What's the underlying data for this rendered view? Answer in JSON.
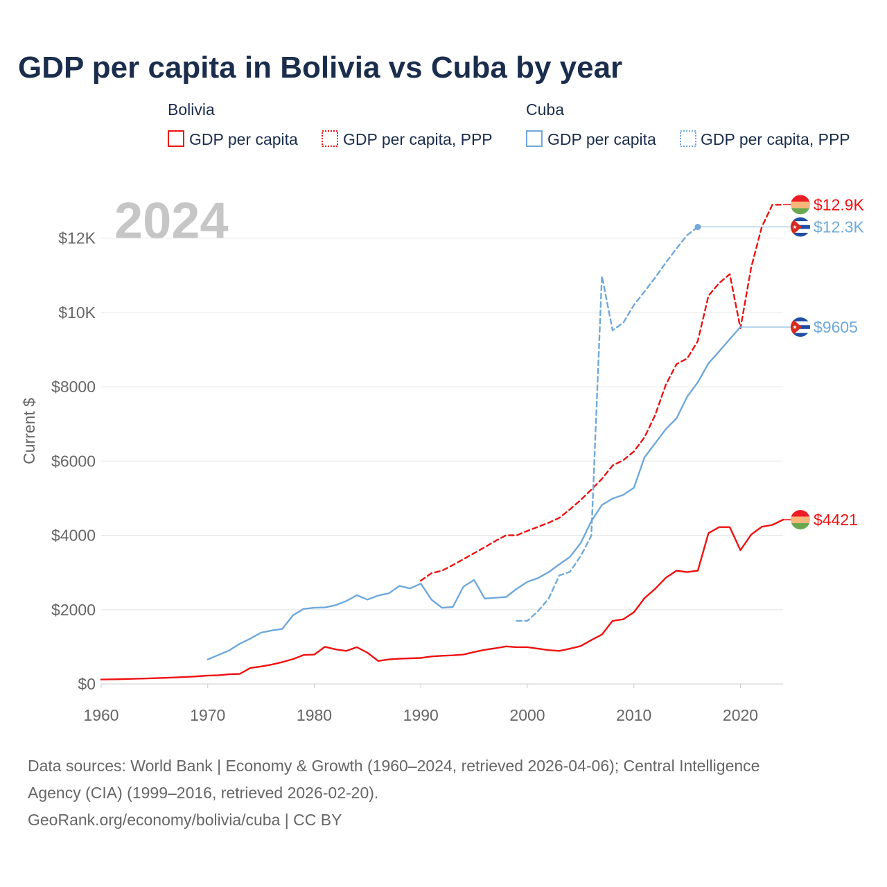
{
  "chart_data": {
    "type": "line",
    "title": "GDP per capita in Bolivia vs Cuba by year",
    "year_label": "2024",
    "ylabel": "Current $",
    "xlim": [
      1960,
      2024
    ],
    "ylim": [
      0,
      13000
    ],
    "x_ticks": [
      {
        "value": 1960,
        "label": "1960"
      },
      {
        "value": 1970,
        "label": "1970"
      },
      {
        "value": 1980,
        "label": "1980"
      },
      {
        "value": 1990,
        "label": "1990"
      },
      {
        "value": 2000,
        "label": "2000"
      },
      {
        "value": 2010,
        "label": "2010"
      },
      {
        "value": 2020,
        "label": "2020"
      }
    ],
    "y_ticks": [
      {
        "value": 0,
        "label": "$0"
      },
      {
        "value": 2000,
        "label": "$2000"
      },
      {
        "value": 4000,
        "label": "$4000"
      },
      {
        "value": 6000,
        "label": "$6000"
      },
      {
        "value": 8000,
        "label": "$8000"
      },
      {
        "value": 10000,
        "label": "$10K"
      },
      {
        "value": 12000,
        "label": "$12K"
      }
    ],
    "legend": [
      {
        "group": "Bolivia",
        "entries": [
          {
            "label": "GDP per capita",
            "series": "bolivia_gdp"
          },
          {
            "label": "GDP per capita, PPP",
            "series": "bolivia_ppp"
          }
        ]
      },
      {
        "group": "Cuba",
        "entries": [
          {
            "label": "GDP per capita",
            "series": "cuba_gdp"
          },
          {
            "label": "GDP per capita, PPP",
            "series": "cuba_ppp"
          }
        ]
      }
    ],
    "series": [
      {
        "id": "bolivia_gdp",
        "name": "Bolivia GDP per capita",
        "country": "Bolivia",
        "color": "#ee1111",
        "style": "solid",
        "end_label": "$4421",
        "end_value": 4421,
        "x": [
          1960,
          1961,
          1962,
          1963,
          1964,
          1965,
          1966,
          1967,
          1968,
          1969,
          1970,
          1971,
          1972,
          1973,
          1974,
          1975,
          1976,
          1977,
          1978,
          1979,
          1980,
          1981,
          1982,
          1983,
          1984,
          1985,
          1986,
          1987,
          1988,
          1989,
          1990,
          1991,
          1992,
          1993,
          1994,
          1995,
          1996,
          1997,
          1998,
          1999,
          2000,
          2001,
          2002,
          2003,
          2004,
          2005,
          2006,
          2007,
          2008,
          2009,
          2010,
          2011,
          2012,
          2013,
          2014,
          2015,
          2016,
          2017,
          2018,
          2019,
          2020,
          2021,
          2022,
          2023,
          2024
        ],
        "y": [
          120,
          125,
          130,
          138,
          146,
          155,
          165,
          175,
          190,
          205,
          225,
          235,
          262,
          270,
          430,
          470,
          520,
          590,
          670,
          780,
          790,
          1000,
          930,
          890,
          990,
          840,
          620,
          660,
          680,
          690,
          700,
          740,
          760,
          770,
          790,
          860,
          920,
          960,
          1010,
          990,
          990,
          950,
          910,
          890,
          950,
          1020,
          1180,
          1330,
          1700,
          1740,
          1930,
          2310,
          2560,
          2860,
          3050,
          3010,
          3050,
          4060,
          4220,
          4220,
          3600,
          4020,
          4230,
          4280,
          4421
        ]
      },
      {
        "id": "bolivia_ppp",
        "name": "Bolivia GDP per capita, PPP",
        "country": "Bolivia",
        "color": "#ee1111",
        "style": "dashed",
        "end_label": "$12.9K",
        "end_value": 12900,
        "x": [
          1990,
          1991,
          1992,
          1993,
          1994,
          1995,
          1996,
          1997,
          1998,
          1999,
          2000,
          2001,
          2002,
          2003,
          2004,
          2005,
          2006,
          2007,
          2008,
          2009,
          2010,
          2011,
          2012,
          2013,
          2014,
          2015,
          2016,
          2017,
          2018,
          2019,
          2020,
          2021,
          2022,
          2023,
          2024
        ],
        "y": [
          2780,
          2980,
          3050,
          3200,
          3360,
          3520,
          3680,
          3850,
          4000,
          4000,
          4120,
          4230,
          4340,
          4470,
          4700,
          4950,
          5230,
          5520,
          5880,
          6020,
          6260,
          6640,
          7240,
          8060,
          8610,
          8760,
          9230,
          10450,
          10790,
          11030,
          9570,
          11200,
          12300,
          12900,
          12900
        ]
      },
      {
        "id": "cuba_gdp",
        "name": "Cuba GDP per capita",
        "country": "Cuba",
        "color": "#6fa8dc",
        "style": "solid",
        "end_label": "$9605",
        "end_value": 9605,
        "x": [
          1970,
          1971,
          1972,
          1973,
          1974,
          1975,
          1976,
          1977,
          1978,
          1979,
          1980,
          1981,
          1982,
          1983,
          1984,
          1985,
          1986,
          1987,
          1988,
          1989,
          1990,
          1991,
          1992,
          1993,
          1994,
          1995,
          1996,
          1997,
          1998,
          1999,
          2000,
          2001,
          2002,
          2003,
          2004,
          2005,
          2006,
          2007,
          2008,
          2009,
          2010,
          2011,
          2012,
          2013,
          2014,
          2015,
          2016,
          2017,
          2018,
          2019,
          2020
        ],
        "y": [
          660,
          780,
          900,
          1080,
          1220,
          1380,
          1440,
          1480,
          1850,
          2020,
          2050,
          2060,
          2120,
          2230,
          2390,
          2270,
          2380,
          2440,
          2640,
          2570,
          2700,
          2270,
          2050,
          2070,
          2620,
          2800,
          2300,
          2320,
          2340,
          2560,
          2750,
          2850,
          3010,
          3220,
          3420,
          3790,
          4380,
          4820,
          4990,
          5090,
          5280,
          6100,
          6480,
          6860,
          7150,
          7730,
          8120,
          8630,
          8950,
          9280,
          9605
        ]
      },
      {
        "id": "cuba_ppp",
        "name": "Cuba GDP per capita, PPP",
        "country": "Cuba",
        "color": "#6fa8dc",
        "style": "dashed",
        "end_label": "$12.3K",
        "end_value": 12300,
        "x": [
          1999,
          2000,
          2001,
          2002,
          2003,
          2004,
          2005,
          2006,
          2007,
          2008,
          2009,
          2010,
          2011,
          2012,
          2013,
          2014,
          2015,
          2016
        ],
        "y": [
          1700,
          1700,
          1960,
          2300,
          2920,
          3020,
          3440,
          3990,
          10980,
          9520,
          9720,
          10200,
          10560,
          10940,
          11340,
          11720,
          12080,
          12300
        ]
      }
    ],
    "source_lines": [
      "Data sources: World Bank | Economy & Growth (1960–2024, retrieved 2026-04-06); Central Intelligence",
      "Agency (CIA) (1999–2016, retrieved 2026-02-20).",
      "GeoRank.org/economy/bolivia/cuba | CC BY"
    ]
  }
}
